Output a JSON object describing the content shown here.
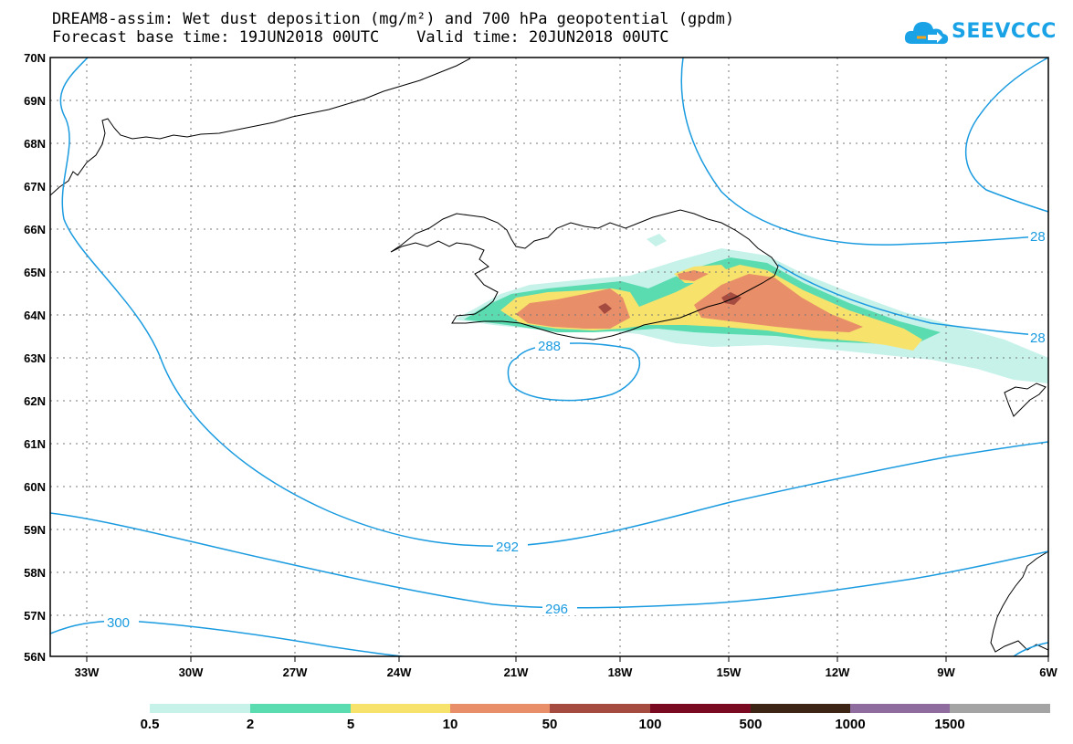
{
  "header": {
    "title_line1": "DREAM8-assim: Wet dust deposition (mg/m²) and 700 hPa geopotential (gpdm)",
    "title_line2": "Forecast base time: 19JUN2018 00UTC    Valid time: 20JUN2018 00UTC"
  },
  "logo": {
    "text": "SEEVCCC",
    "icon": "cloud-icon",
    "color": "#19a3e6"
  },
  "map": {
    "lat_labels": [
      "70N",
      "69N",
      "68N",
      "67N",
      "66N",
      "65N",
      "64N",
      "63N",
      "62N",
      "61N",
      "60N",
      "59N",
      "58N",
      "57N",
      "56N"
    ],
    "lon_labels": [
      "33W",
      "30W",
      "27W",
      "24W",
      "21W",
      "18W",
      "15W",
      "12W",
      "9W",
      "6W"
    ],
    "contour_labels": [
      "288",
      "292",
      "296",
      "300",
      "28",
      "28"
    ],
    "contour_color": "#1a9be0"
  },
  "colorbar": {
    "colors": [
      "#c6f2ea",
      "#5adcb0",
      "#f7e36c",
      "#e88e68",
      "#a64b40",
      "#7a0a22",
      "#3d2516",
      "#8f6c9e",
      "#a4a4a4"
    ],
    "labels": [
      "0.5",
      "2",
      "5",
      "10",
      "50",
      "100",
      "500",
      "1000",
      "1500"
    ]
  }
}
